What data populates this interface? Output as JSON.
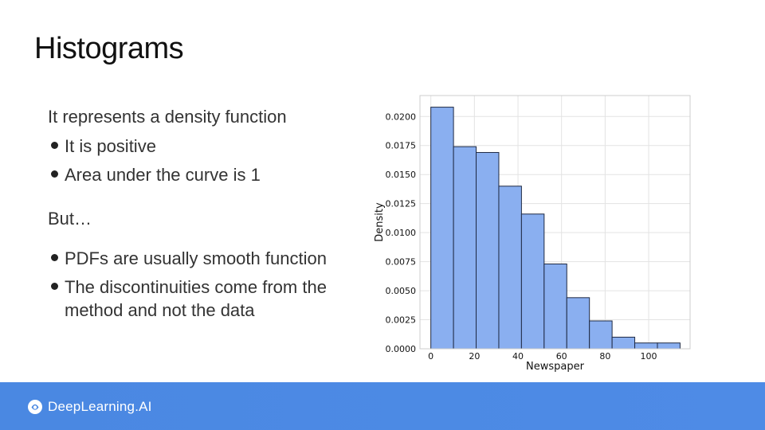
{
  "slide": {
    "title": "Histograms",
    "intro": "It represents a density function",
    "bullets_1": [
      "It is positive",
      "Area under the curve is 1"
    ],
    "transition": "But…",
    "bullets_2": [
      "PDFs are usually smooth function",
      "The discontinuities come from the",
      "method and not the data"
    ]
  },
  "footer": {
    "brand": "DeepLearning.AI",
    "brand_icon": "deeplearning-logo-icon",
    "color": "#4a88e2"
  },
  "chart_data": {
    "type": "bar",
    "xlabel": "Newspaper",
    "ylabel": "Density",
    "bin_edges": [
      0,
      10.4,
      20.8,
      31.2,
      41.6,
      52,
      62.4,
      72.8,
      83.2,
      93.6,
      104,
      114.4
    ],
    "values": [
      0.0208,
      0.0174,
      0.0169,
      0.014,
      0.0116,
      0.0073,
      0.0044,
      0.0024,
      0.001,
      0.0005,
      0.0005
    ],
    "xticks": [
      "0",
      "20",
      "40",
      "60",
      "80",
      "100"
    ],
    "yticks": [
      "0.0000",
      "0.0025",
      "0.0050",
      "0.0075",
      "0.0100",
      "0.0125",
      "0.0150",
      "0.0175",
      "0.0200"
    ],
    "xlim": [
      -5,
      119
    ],
    "ylim": [
      0,
      0.0218
    ],
    "grid": true,
    "bar_color": "#8aaff0",
    "edge_color": "#1f2a44"
  }
}
